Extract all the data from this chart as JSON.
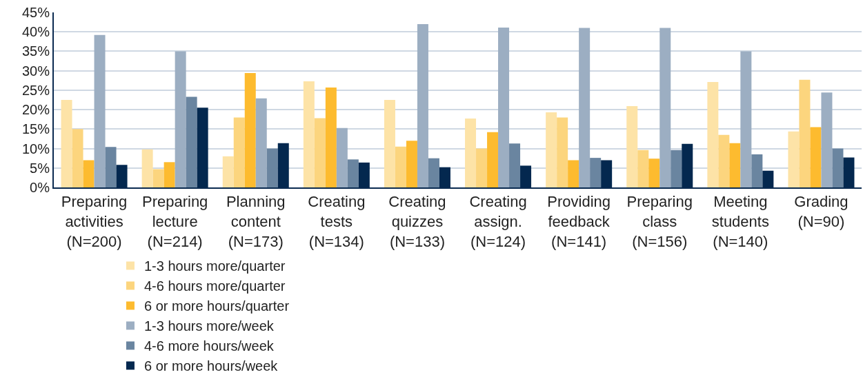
{
  "chart_data": {
    "type": "bar",
    "categories": [
      "Preparing\nactivities\n(N=200)",
      "Preparing\nlecture\n(N=214)",
      "Planning\ncontent\n(N=173)",
      "Creating\ntests\n(N=134)",
      "Creating\nquizzes\n(N=133)",
      "Creating\nassign.\n(N=124)",
      "Providing\nfeedback\n(N=141)",
      "Preparing\nclass\n(N=156)",
      "Meeting\nstudents\n(N=140)",
      "Grading\n(N=90)"
    ],
    "series": [
      {
        "name": "1-3 hours more/quarter",
        "color": "#fde3a7",
        "values": [
          22.5,
          9.8,
          8,
          27.3,
          22.5,
          17.7,
          19.3,
          20.9,
          27.1,
          14.4
        ]
      },
      {
        "name": "4-6 hours more/quarter",
        "color": "#fcd57e",
        "values": [
          15,
          4.7,
          18,
          17.8,
          10.5,
          10,
          18,
          9.6,
          13.5,
          27.7
        ]
      },
      {
        "name": "6 or more hours/quarter",
        "color": "#fdbb2f",
        "values": [
          7,
          6.5,
          29.4,
          25.7,
          12,
          14.2,
          7,
          7.4,
          11.4,
          15.5
        ]
      },
      {
        "name": "1-3 hours more/week",
        "color": "#9caec2",
        "values": [
          39.2,
          35,
          22.9,
          15.3,
          42,
          41.1,
          41,
          41,
          35,
          24.4
        ]
      },
      {
        "name": "4-6 more hours/week",
        "color": "#6a85a0",
        "values": [
          10.4,
          23.3,
          10,
          7.2,
          7.5,
          11.3,
          7.6,
          9.6,
          8.5,
          10
        ]
      },
      {
        "name": "6 or more hours/week",
        "color": "#04284f",
        "values": [
          5.8,
          20.5,
          11.4,
          6.4,
          5.2,
          5.6,
          7,
          11.2,
          4.3,
          7.7
        ]
      }
    ],
    "ylim": [
      0,
      45
    ],
    "yticks": [
      {
        "value": 0,
        "label": "0%"
      },
      {
        "value": 5,
        "label": "5%"
      },
      {
        "value": 10,
        "label": "10%"
      },
      {
        "value": 15,
        "label": "15%"
      },
      {
        "value": 20,
        "label": "20%"
      },
      {
        "value": 25,
        "label": "25%"
      },
      {
        "value": 30,
        "label": "30%"
      },
      {
        "value": 35,
        "label": "35%"
      },
      {
        "value": 40,
        "label": "40%"
      },
      {
        "value": 45,
        "label": "45%"
      }
    ],
    "grid": "y",
    "legend": "bottom"
  }
}
